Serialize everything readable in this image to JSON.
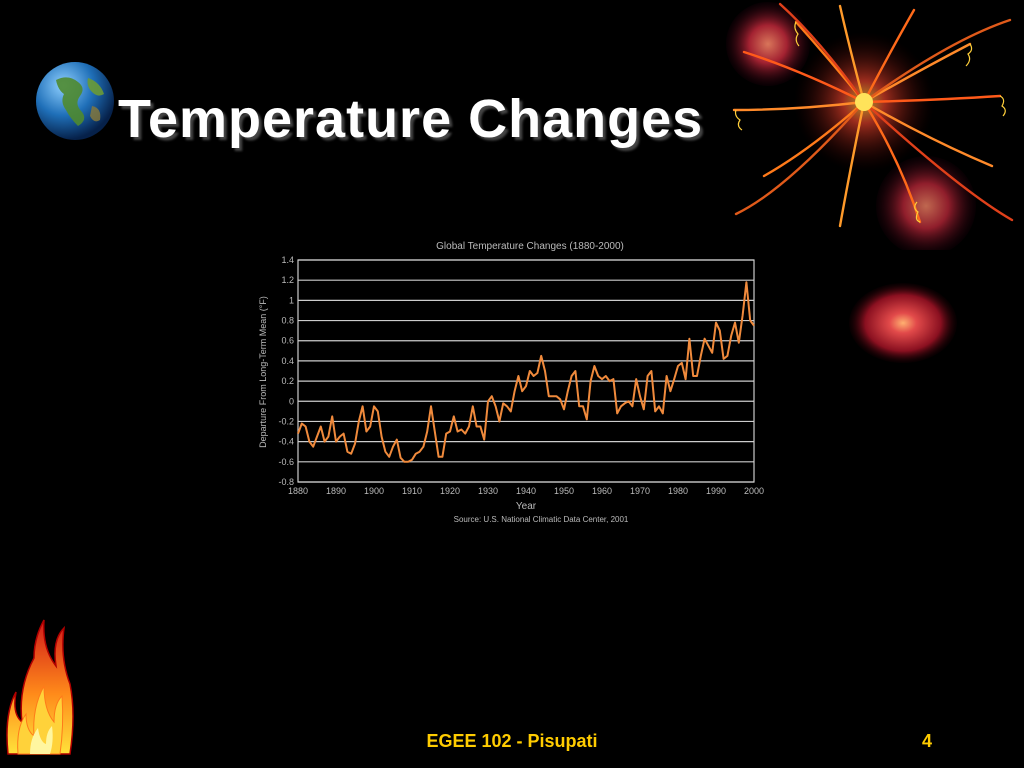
{
  "slide": {
    "title": "Temperature Changes",
    "footer": "EGEE 102 - Pisupati",
    "page_number": "4",
    "text_color": "#ffffff",
    "footer_color": "#ffcc00",
    "background": "#000000"
  },
  "decorations": {
    "top_left": "globe-icon",
    "top_right": "firework-burst",
    "bottom_left": "flame-icon"
  },
  "chart_data": {
    "type": "line",
    "title": "Global Temperature Changes (1880-2000)",
    "xlabel": "Year",
    "ylabel": "Departure From Long-Term Mean (°F)",
    "source": "Source: U.S. National Climatic Data Center, 2001",
    "xlim": [
      1880,
      2000
    ],
    "ylim": [
      -0.8,
      1.4
    ],
    "x_ticks": [
      "1880",
      "1890",
      "1900",
      "1910",
      "1920",
      "1930",
      "1940",
      "1950",
      "1960",
      "1970",
      "1980",
      "1990",
      "2000"
    ],
    "y_ticks": [
      "1.4",
      "1.2",
      "1",
      "0.8",
      "0.6",
      "0.4",
      "0.2",
      "0",
      "-0.2",
      "-0.4",
      "-0.6",
      "-0.8"
    ],
    "grid": true,
    "line_color": "#f08a3c",
    "series": [
      {
        "x": [
          1880,
          1881,
          1882,
          1883,
          1884,
          1885,
          1886,
          1887,
          1888,
          1889,
          1890,
          1891,
          1892,
          1893,
          1894,
          1895,
          1896,
          1897,
          1898,
          1899,
          1900,
          1901,
          1902,
          1903,
          1904,
          1905,
          1906,
          1907,
          1908,
          1909,
          1910,
          1911,
          1912,
          1913,
          1914,
          1915,
          1916,
          1917,
          1918,
          1919,
          1920,
          1921,
          1922,
          1923,
          1924,
          1925,
          1926,
          1927,
          1928,
          1929,
          1930,
          1931,
          1932,
          1933,
          1934,
          1935,
          1936,
          1937,
          1938,
          1939,
          1940,
          1941,
          1942,
          1943,
          1944,
          1945,
          1946,
          1947,
          1948,
          1949,
          1950,
          1951,
          1952,
          1953,
          1954,
          1955,
          1956,
          1957,
          1958,
          1959,
          1960,
          1961,
          1962,
          1963,
          1964,
          1965,
          1966,
          1967,
          1968,
          1969,
          1970,
          1971,
          1972,
          1973,
          1974,
          1975,
          1976,
          1977,
          1978,
          1979,
          1980,
          1981,
          1982,
          1983,
          1984,
          1985,
          1986,
          1987,
          1988,
          1989,
          1990,
          1991,
          1992,
          1993,
          1994,
          1995,
          1996,
          1997,
          1998,
          1999,
          2000
        ],
        "y": [
          -0.32,
          -0.22,
          -0.25,
          -0.4,
          -0.45,
          -0.35,
          -0.25,
          -0.4,
          -0.35,
          -0.15,
          -0.4,
          -0.35,
          -0.32,
          -0.5,
          -0.52,
          -0.42,
          -0.2,
          -0.05,
          -0.3,
          -0.25,
          -0.05,
          -0.1,
          -0.35,
          -0.5,
          -0.55,
          -0.45,
          -0.38,
          -0.56,
          -0.6,
          -0.6,
          -0.58,
          -0.52,
          -0.5,
          -0.45,
          -0.3,
          -0.05,
          -0.3,
          -0.55,
          -0.55,
          -0.32,
          -0.3,
          -0.15,
          -0.3,
          -0.28,
          -0.32,
          -0.25,
          -0.05,
          -0.25,
          -0.25,
          -0.38,
          0.0,
          0.05,
          -0.05,
          -0.2,
          -0.02,
          -0.05,
          -0.1,
          0.1,
          0.25,
          0.1,
          0.15,
          0.3,
          0.25,
          0.28,
          0.45,
          0.3,
          0.05,
          0.05,
          0.05,
          0.02,
          -0.08,
          0.1,
          0.25,
          0.3,
          -0.05,
          -0.05,
          -0.18,
          0.2,
          0.35,
          0.25,
          0.22,
          0.25,
          0.2,
          0.22,
          -0.12,
          -0.05,
          -0.02,
          0.0,
          -0.05,
          0.22,
          0.05,
          -0.08,
          0.25,
          0.3,
          -0.1,
          -0.05,
          -0.12,
          0.25,
          0.1,
          0.22,
          0.35,
          0.38,
          0.22,
          0.62,
          0.25,
          0.25,
          0.45,
          0.62,
          0.55,
          0.48,
          0.78,
          0.7,
          0.42,
          0.45,
          0.65,
          0.78,
          0.58,
          0.85,
          1.18,
          0.8,
          0.75
        ]
      }
    ]
  }
}
